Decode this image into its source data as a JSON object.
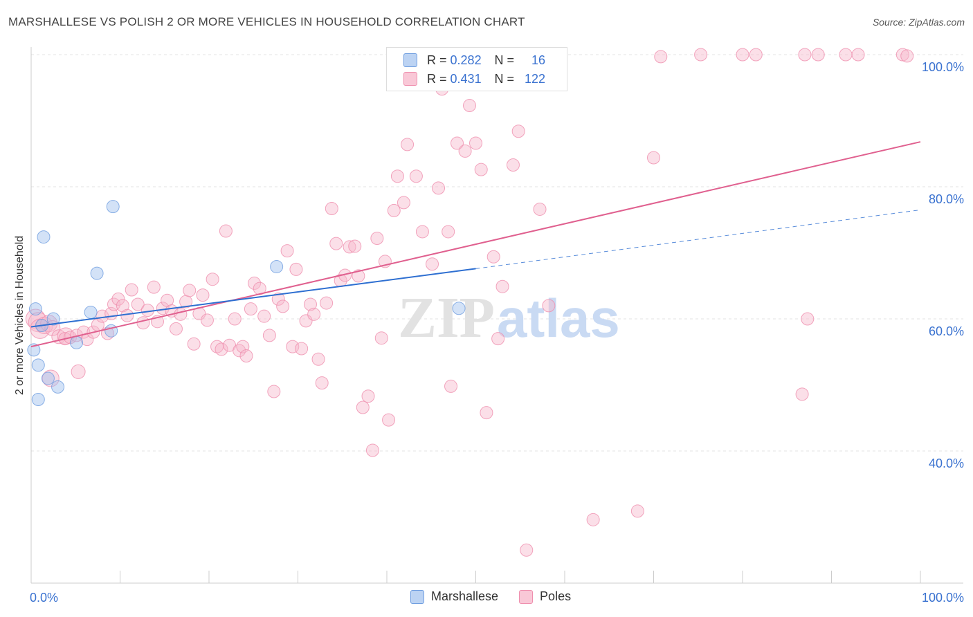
{
  "chart_data": {
    "type": "scatter",
    "title": "MARSHALLESE VS POLISH 2 OR MORE VEHICLES IN HOUSEHOLD CORRELATION CHART",
    "source": "Source: ZipAtlas.com",
    "xlabel": "",
    "ylabel": "2 or more Vehicles in Household",
    "xlim": [
      0,
      100
    ],
    "ylim": [
      20,
      100
    ],
    "x_tick_labels": [
      "0.0%",
      "100.0%"
    ],
    "y_tick_labels": [
      "40.0%",
      "60.0%",
      "80.0%",
      "100.0%"
    ],
    "y_ticks": [
      40,
      60,
      80,
      100
    ],
    "watermark": "ZIPatlas",
    "legend": {
      "rows": [
        {
          "r_label": "R =",
          "r_value": "0.282",
          "n_label": "N =",
          "n_value": "16"
        },
        {
          "r_label": "R =",
          "r_value": "0.431",
          "n_label": "N =",
          "n_value": "122"
        }
      ]
    },
    "series": [
      {
        "name": "Marshallese",
        "color": "#9dbfee",
        "stroke": "#6f9ee0",
        "trend_color": "#2e6fd1",
        "trend": {
          "x0": 0,
          "y0": 58.8,
          "x1": 50,
          "y1": 67.6,
          "dashed_to_x": 100,
          "dashed_to_y": 76.5
        },
        "points": [
          [
            0.3,
            55.3
          ],
          [
            0.5,
            61.5
          ],
          [
            0.8,
            53.0
          ],
          [
            0.8,
            47.8
          ],
          [
            1.2,
            59.0
          ],
          [
            1.4,
            72.4
          ],
          [
            1.9,
            51.0
          ],
          [
            2.5,
            60.0
          ],
          [
            3.0,
            49.7
          ],
          [
            5.1,
            56.4
          ],
          [
            6.7,
            61.0
          ],
          [
            7.4,
            66.9
          ],
          [
            9.0,
            58.2
          ],
          [
            9.2,
            77.0
          ],
          [
            27.6,
            67.9
          ],
          [
            48.1,
            61.6
          ]
        ],
        "sizes": [
          9,
          9,
          9,
          9,
          9,
          9,
          9,
          9,
          9,
          9,
          9,
          9,
          9,
          9,
          9,
          9
        ]
      },
      {
        "name": "Poles",
        "color": "#f7b9cc",
        "stroke": "#ef8fae",
        "trend_color": "#e0608f",
        "trend": {
          "x0": 0,
          "y0": 55.8,
          "x1": 100,
          "y1": 86.8
        },
        "points": [
          [
            0.5,
            60.0
          ],
          [
            0.8,
            59.5
          ],
          [
            1.0,
            58.5
          ],
          [
            1.5,
            59.0
          ],
          [
            2.0,
            59.3
          ],
          [
            2.4,
            58.6
          ],
          [
            2.2,
            51.0
          ],
          [
            3.1,
            57.3
          ],
          [
            3.9,
            57.4
          ],
          [
            3.8,
            57.0
          ],
          [
            4.4,
            57.2
          ],
          [
            5.1,
            57.5
          ],
          [
            5.3,
            52.0
          ],
          [
            5.9,
            58.0
          ],
          [
            6.3,
            56.9
          ],
          [
            7.0,
            58.0
          ],
          [
            7.5,
            59.1
          ],
          [
            8.0,
            60.4
          ],
          [
            8.6,
            57.8
          ],
          [
            9.0,
            60.8
          ],
          [
            9.3,
            62.2
          ],
          [
            9.8,
            63.0
          ],
          [
            10.3,
            62.0
          ],
          [
            10.8,
            60.5
          ],
          [
            11.3,
            64.4
          ],
          [
            12.0,
            62.2
          ],
          [
            12.6,
            59.4
          ],
          [
            13.1,
            61.3
          ],
          [
            13.8,
            64.8
          ],
          [
            14.2,
            59.6
          ],
          [
            14.8,
            61.6
          ],
          [
            15.3,
            62.8
          ],
          [
            15.8,
            61.2
          ],
          [
            16.3,
            58.5
          ],
          [
            16.8,
            60.7
          ],
          [
            17.4,
            62.6
          ],
          [
            17.8,
            64.3
          ],
          [
            18.3,
            56.2
          ],
          [
            18.9,
            60.8
          ],
          [
            19.3,
            63.6
          ],
          [
            19.8,
            59.8
          ],
          [
            20.4,
            66.0
          ],
          [
            20.9,
            55.8
          ],
          [
            21.4,
            55.4
          ],
          [
            21.9,
            73.3
          ],
          [
            22.3,
            56.0
          ],
          [
            22.9,
            60.0
          ],
          [
            23.4,
            55.2
          ],
          [
            23.8,
            55.8
          ],
          [
            24.2,
            54.4
          ],
          [
            24.7,
            61.5
          ],
          [
            25.1,
            65.4
          ],
          [
            25.7,
            64.6
          ],
          [
            26.2,
            60.4
          ],
          [
            26.8,
            57.5
          ],
          [
            27.3,
            49.0
          ],
          [
            27.8,
            63.0
          ],
          [
            28.3,
            61.9
          ],
          [
            28.8,
            70.3
          ],
          [
            29.4,
            55.8
          ],
          [
            29.8,
            67.5
          ],
          [
            30.4,
            55.5
          ],
          [
            30.9,
            59.7
          ],
          [
            31.4,
            62.2
          ],
          [
            31.8,
            60.7
          ],
          [
            32.3,
            53.9
          ],
          [
            32.7,
            50.3
          ],
          [
            33.2,
            62.4
          ],
          [
            33.8,
            76.7
          ],
          [
            34.3,
            71.4
          ],
          [
            34.8,
            65.8
          ],
          [
            35.3,
            66.6
          ],
          [
            35.8,
            70.9
          ],
          [
            36.4,
            71.0
          ],
          [
            36.8,
            66.5
          ],
          [
            37.3,
            46.6
          ],
          [
            37.9,
            48.3
          ],
          [
            38.4,
            40.1
          ],
          [
            38.9,
            72.2
          ],
          [
            39.4,
            57.1
          ],
          [
            39.8,
            68.7
          ],
          [
            40.2,
            44.7
          ],
          [
            40.8,
            76.4
          ],
          [
            41.2,
            81.6
          ],
          [
            41.9,
            77.6
          ],
          [
            42.3,
            86.4
          ],
          [
            43.3,
            81.6
          ],
          [
            44.0,
            73.2
          ],
          [
            45.1,
            68.3
          ],
          [
            45.8,
            79.8
          ],
          [
            46.2,
            94.8
          ],
          [
            46.9,
            73.2
          ],
          [
            47.2,
            49.8
          ],
          [
            47.9,
            86.6
          ],
          [
            48.8,
            85.4
          ],
          [
            49.3,
            92.3
          ],
          [
            50.0,
            86.6
          ],
          [
            50.6,
            82.6
          ],
          [
            51.2,
            45.8
          ],
          [
            52.0,
            69.4
          ],
          [
            52.5,
            57.0
          ],
          [
            53.0,
            64.9
          ],
          [
            54.2,
            83.3
          ],
          [
            54.8,
            88.4
          ],
          [
            55.7,
            25.0
          ],
          [
            57.2,
            76.6
          ],
          [
            58.2,
            62.0
          ],
          [
            63.2,
            29.6
          ],
          [
            68.2,
            30.9
          ],
          [
            70.0,
            84.4
          ],
          [
            70.8,
            99.7
          ],
          [
            75.3,
            100
          ],
          [
            80.0,
            100
          ],
          [
            81.5,
            100
          ],
          [
            87.0,
            100
          ],
          [
            91.6,
            100
          ],
          [
            86.7,
            48.6
          ],
          [
            87.3,
            60.0
          ],
          [
            98.0,
            100
          ],
          [
            88.5,
            100
          ],
          [
            93.0,
            100
          ],
          [
            98.5,
            99.8
          ]
        ],
        "sizes": [
          14,
          14,
          14,
          12,
          12,
          11,
          12,
          10,
          12,
          9,
          9,
          9,
          10,
          9,
          9,
          9,
          9,
          9,
          9,
          9,
          9,
          9,
          9,
          9,
          9,
          9,
          9,
          9,
          9,
          9,
          9,
          9,
          9,
          9,
          9,
          9,
          9,
          9,
          9,
          9,
          9,
          9,
          9,
          9,
          9,
          9,
          9,
          9,
          9,
          9,
          9,
          9,
          9,
          9,
          9,
          9,
          9,
          9,
          9,
          9,
          9,
          9,
          9,
          9,
          9,
          9,
          9,
          9,
          9,
          9,
          9,
          9,
          9,
          9,
          9,
          9,
          9,
          9,
          9,
          9,
          9,
          9,
          9,
          9,
          9,
          9,
          9,
          9,
          9,
          9,
          9,
          9,
          9,
          9,
          9,
          9,
          9,
          9,
          9,
          9,
          9,
          9,
          9,
          9,
          9,
          9,
          9,
          9,
          9,
          9,
          9,
          9,
          9,
          9,
          9,
          9,
          9,
          9,
          9,
          9,
          9,
          9
        ]
      }
    ]
  }
}
